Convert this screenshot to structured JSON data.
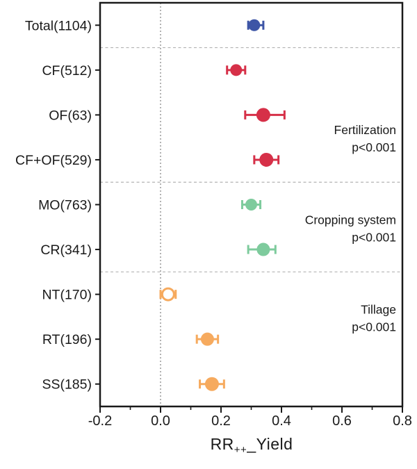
{
  "chart_data": {
    "type": "scatter",
    "variant": "forest-plot-dot-ci",
    "title": "",
    "xlabel": {
      "base": "RR",
      "subscript": "++",
      "suffix": "_Yield"
    },
    "ylabel": "",
    "xlim": [
      -0.2,
      0.8
    ],
    "xticks_major": [
      -0.2,
      0.0,
      0.2,
      0.4,
      0.6,
      0.8
    ],
    "xtick_labels": [
      "-0.2",
      "0.0",
      "0.2",
      "0.4",
      "0.6",
      "0.8"
    ],
    "xticks_minor": [
      -0.1,
      0.1,
      0.3,
      0.5,
      0.7
    ],
    "zero_line": 0.0,
    "grid": false,
    "legend_position": "none",
    "categories": [
      "Total(1104)",
      "CF(512)",
      "OF(63)",
      "CF+OF(529)",
      "MO(763)",
      "CR(341)",
      "NT(170)",
      "RT(196)",
      "SS(185)"
    ],
    "points": [
      {
        "label": "Total(1104)",
        "group": "Total",
        "value": 0.31,
        "ci_low": 0.29,
        "ci_high": 0.34,
        "color": "#3D55A6",
        "filled": true,
        "radius": 8.5
      },
      {
        "label": "CF(512)",
        "group": "Fertilization",
        "value": 0.25,
        "ci_low": 0.22,
        "ci_high": 0.28,
        "color": "#D63048",
        "filled": true,
        "radius": 8.5
      },
      {
        "label": "OF(63)",
        "group": "Fertilization",
        "value": 0.34,
        "ci_low": 0.28,
        "ci_high": 0.41,
        "color": "#D63048",
        "filled": true,
        "radius": 10
      },
      {
        "label": "CF+OF(529)",
        "group": "Fertilization",
        "value": 0.35,
        "ci_low": 0.31,
        "ci_high": 0.39,
        "color": "#D63048",
        "filled": true,
        "radius": 10
      },
      {
        "label": "MO(763)",
        "group": "Cropping system",
        "value": 0.3,
        "ci_low": 0.27,
        "ci_high": 0.33,
        "color": "#7ECB9D",
        "filled": true,
        "radius": 8.5
      },
      {
        "label": "CR(341)",
        "group": "Cropping system",
        "value": 0.34,
        "ci_low": 0.29,
        "ci_high": 0.38,
        "color": "#7ECB9D",
        "filled": true,
        "radius": 9.5
      },
      {
        "label": "NT(170)",
        "group": "Tillage",
        "value": 0.025,
        "ci_low": 0.0,
        "ci_high": 0.05,
        "color": "#F6AA5E",
        "filled": false,
        "radius": 8.5
      },
      {
        "label": "RT(196)",
        "group": "Tillage",
        "value": 0.155,
        "ci_low": 0.12,
        "ci_high": 0.19,
        "color": "#F6AA5E",
        "filled": true,
        "radius": 9.5
      },
      {
        "label": "SS(185)",
        "group": "Tillage",
        "value": 0.17,
        "ci_low": 0.13,
        "ci_high": 0.21,
        "color": "#F6AA5E",
        "filled": true,
        "radius": 10
      }
    ],
    "group_annotations": [
      {
        "name": "Fertilization",
        "p": "p<0.001",
        "between_rows": [
          2,
          3
        ]
      },
      {
        "name": "Cropping system",
        "p": "p<0.001",
        "between_rows": [
          4,
          5
        ]
      },
      {
        "name": "Tillage",
        "p": "p<0.001",
        "between_rows": [
          6,
          7
        ]
      }
    ],
    "separators_after_rows": [
      0,
      3,
      5
    ],
    "colors": {
      "total": "#3D55A6",
      "fertilization": "#D63048",
      "cropping_system": "#7ECB9D",
      "tillage": "#F6AA5E",
      "frame": "#1a1a1a",
      "separator": "#b3b3b3",
      "zero_line": "#999999",
      "text": "#1a1a1a"
    }
  }
}
